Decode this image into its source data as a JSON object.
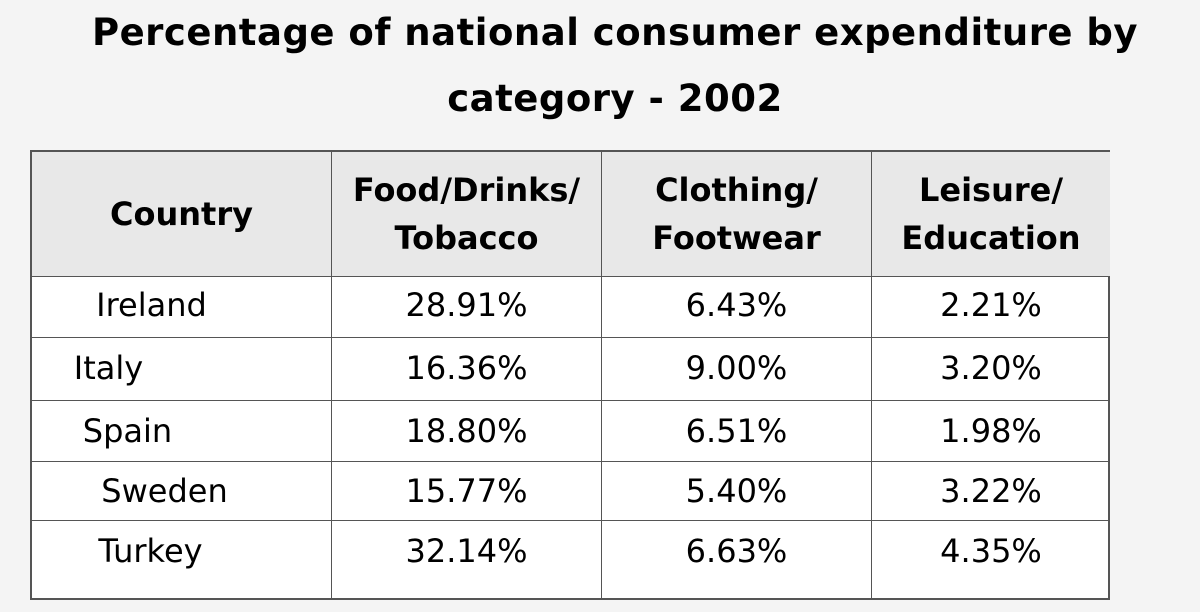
{
  "header": {
    "title": "Percentage of national consumer expenditure by category - 2002"
  },
  "table": {
    "columns": [
      "Country",
      "Food/Drinks/ Tobacco",
      "Clothing/ Footwear",
      "Leisure/ Education"
    ],
    "rows": [
      [
        "Ireland",
        "28.91%",
        "6.43%",
        "2.21%"
      ],
      [
        "Italy",
        "16.36%",
        "9.00%",
        "3.20%"
      ],
      [
        "Spain",
        "18.80%",
        "6.51%",
        "1.98%"
      ],
      [
        "Sweden",
        "15.77%",
        "5.40%",
        "3.22%"
      ],
      [
        "Turkey",
        "32.14%",
        "6.63%",
        "4.35%"
      ]
    ]
  }
}
